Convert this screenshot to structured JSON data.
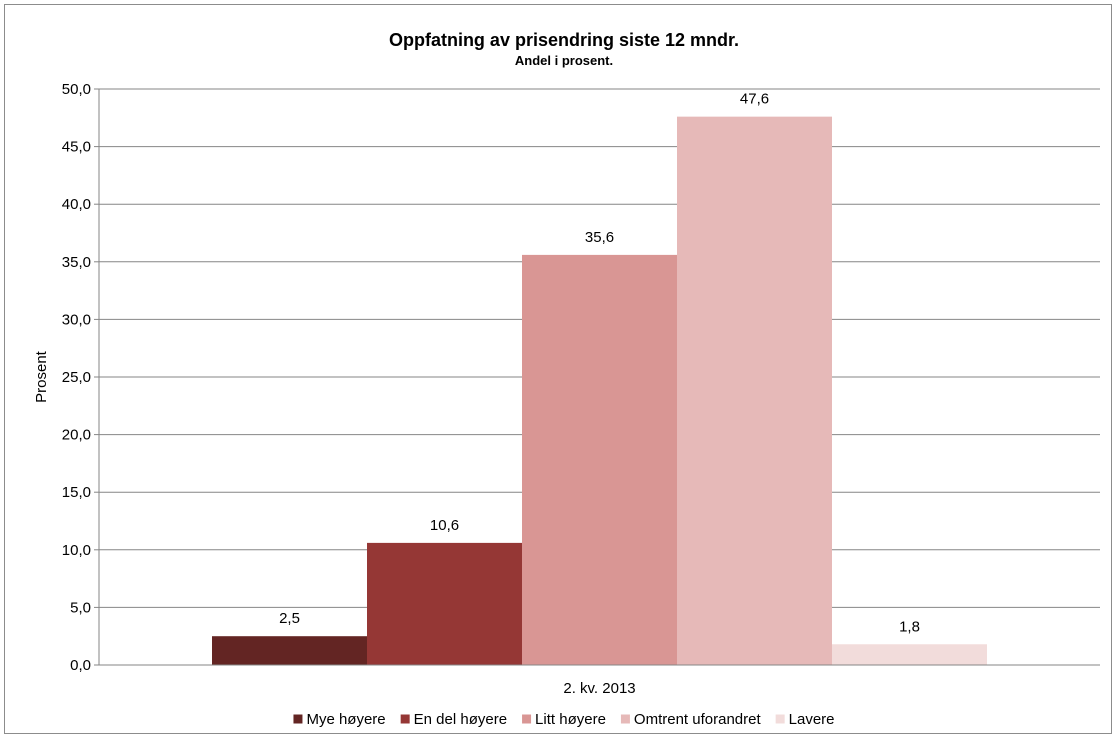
{
  "chart_data": {
    "type": "bar",
    "title": "Oppfatning av prisendring siste 12 mndr.",
    "subtitle": "Andel i prosent.",
    "ylabel": "Prosent",
    "xlabel": "",
    "categories": [
      "2. kv. 2013"
    ],
    "ylim": [
      0,
      50
    ],
    "yticks": [
      "0,0",
      "5,0",
      "10,0",
      "15,0",
      "20,0",
      "25,0",
      "30,0",
      "35,0",
      "40,0",
      "45,0",
      "50,0"
    ],
    "grid": true,
    "legend_position": "bottom",
    "series": [
      {
        "name": "Mye høyere",
        "values": [
          2.5
        ],
        "label": "2,5",
        "color": "#632523"
      },
      {
        "name": "En del høyere",
        "values": [
          10.6
        ],
        "label": "10,6",
        "color": "#953735"
      },
      {
        "name": "Litt høyere",
        "values": [
          35.6
        ],
        "label": "35,6",
        "color": "#d99694"
      },
      {
        "name": "Omtrent uforandret",
        "values": [
          47.6
        ],
        "label": "47,6",
        "color": "#e6b9b8"
      },
      {
        "name": "Lavere",
        "values": [
          1.8
        ],
        "label": "1,8",
        "color": "#f2dcdb"
      }
    ]
  }
}
